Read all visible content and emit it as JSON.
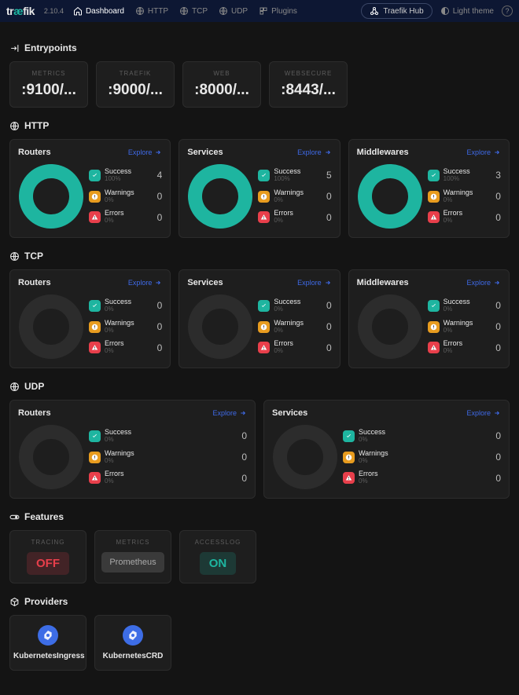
{
  "header": {
    "brand": "træfik",
    "version": "2.10.4",
    "nav": {
      "dashboard": "Dashboard",
      "http": "HTTP",
      "tcp": "TCP",
      "udp": "UDP",
      "plugins": "Plugins"
    },
    "hub": "Traefik Hub",
    "theme": "Light theme"
  },
  "sections": {
    "entrypoints": "Entrypoints",
    "http": "HTTP",
    "tcp": "TCP",
    "udp": "UDP",
    "features": "Features",
    "providers": "Providers"
  },
  "entrypoints": [
    {
      "name": "METRICS",
      "port": ":9100/..."
    },
    {
      "name": "TRAEFIK",
      "port": ":9000/..."
    },
    {
      "name": "WEB",
      "port": ":8000/..."
    },
    {
      "name": "WEBSECURE",
      "port": ":8443/..."
    }
  ],
  "labels": {
    "routers": "Routers",
    "services": "Services",
    "middlewares": "Middlewares",
    "explore": "Explore",
    "success": "Success",
    "warnings": "Warnings",
    "errors": "Errors"
  },
  "colors": {
    "success": "#1eb5a0",
    "warning": "#e89c1f",
    "error": "#e83f4b",
    "ring_empty": "#2c2c2c"
  },
  "http": {
    "routers": {
      "success": {
        "pct": "100%",
        "count": 4
      },
      "warnings": {
        "pct": "0%",
        "count": 0
      },
      "errors": {
        "pct": "0%",
        "count": 0
      }
    },
    "services": {
      "success": {
        "pct": "100%",
        "count": 5
      },
      "warnings": {
        "pct": "0%",
        "count": 0
      },
      "errors": {
        "pct": "0%",
        "count": 0
      }
    },
    "middlewares": {
      "success": {
        "pct": "100%",
        "count": 3
      },
      "warnings": {
        "pct": "0%",
        "count": 0
      },
      "errors": {
        "pct": "0%",
        "count": 0
      }
    }
  },
  "tcp": {
    "routers": {
      "success": {
        "pct": "0%",
        "count": 0
      },
      "warnings": {
        "pct": "0%",
        "count": 0
      },
      "errors": {
        "pct": "0%",
        "count": 0
      }
    },
    "services": {
      "success": {
        "pct": "0%",
        "count": 0
      },
      "warnings": {
        "pct": "0%",
        "count": 0
      },
      "errors": {
        "pct": "0%",
        "count": 0
      }
    },
    "middlewares": {
      "success": {
        "pct": "0%",
        "count": 0
      },
      "warnings": {
        "pct": "0%",
        "count": 0
      },
      "errors": {
        "pct": "0%",
        "count": 0
      }
    }
  },
  "udp": {
    "routers": {
      "success": {
        "pct": "0%",
        "count": 0
      },
      "warnings": {
        "pct": "0%",
        "count": 0
      },
      "errors": {
        "pct": "0%",
        "count": 0
      }
    },
    "services": {
      "success": {
        "pct": "0%",
        "count": 0
      },
      "warnings": {
        "pct": "0%",
        "count": 0
      },
      "errors": {
        "pct": "0%",
        "count": 0
      }
    }
  },
  "features": [
    {
      "name": "TRACING",
      "label": "OFF",
      "style": "off"
    },
    {
      "name": "METRICS",
      "label": "Prometheus",
      "style": "gray"
    },
    {
      "name": "ACCESSLOG",
      "label": "ON",
      "style": "on"
    }
  ],
  "providers": [
    {
      "name": "KubernetesIngress"
    },
    {
      "name": "KubernetesCRD"
    }
  ]
}
